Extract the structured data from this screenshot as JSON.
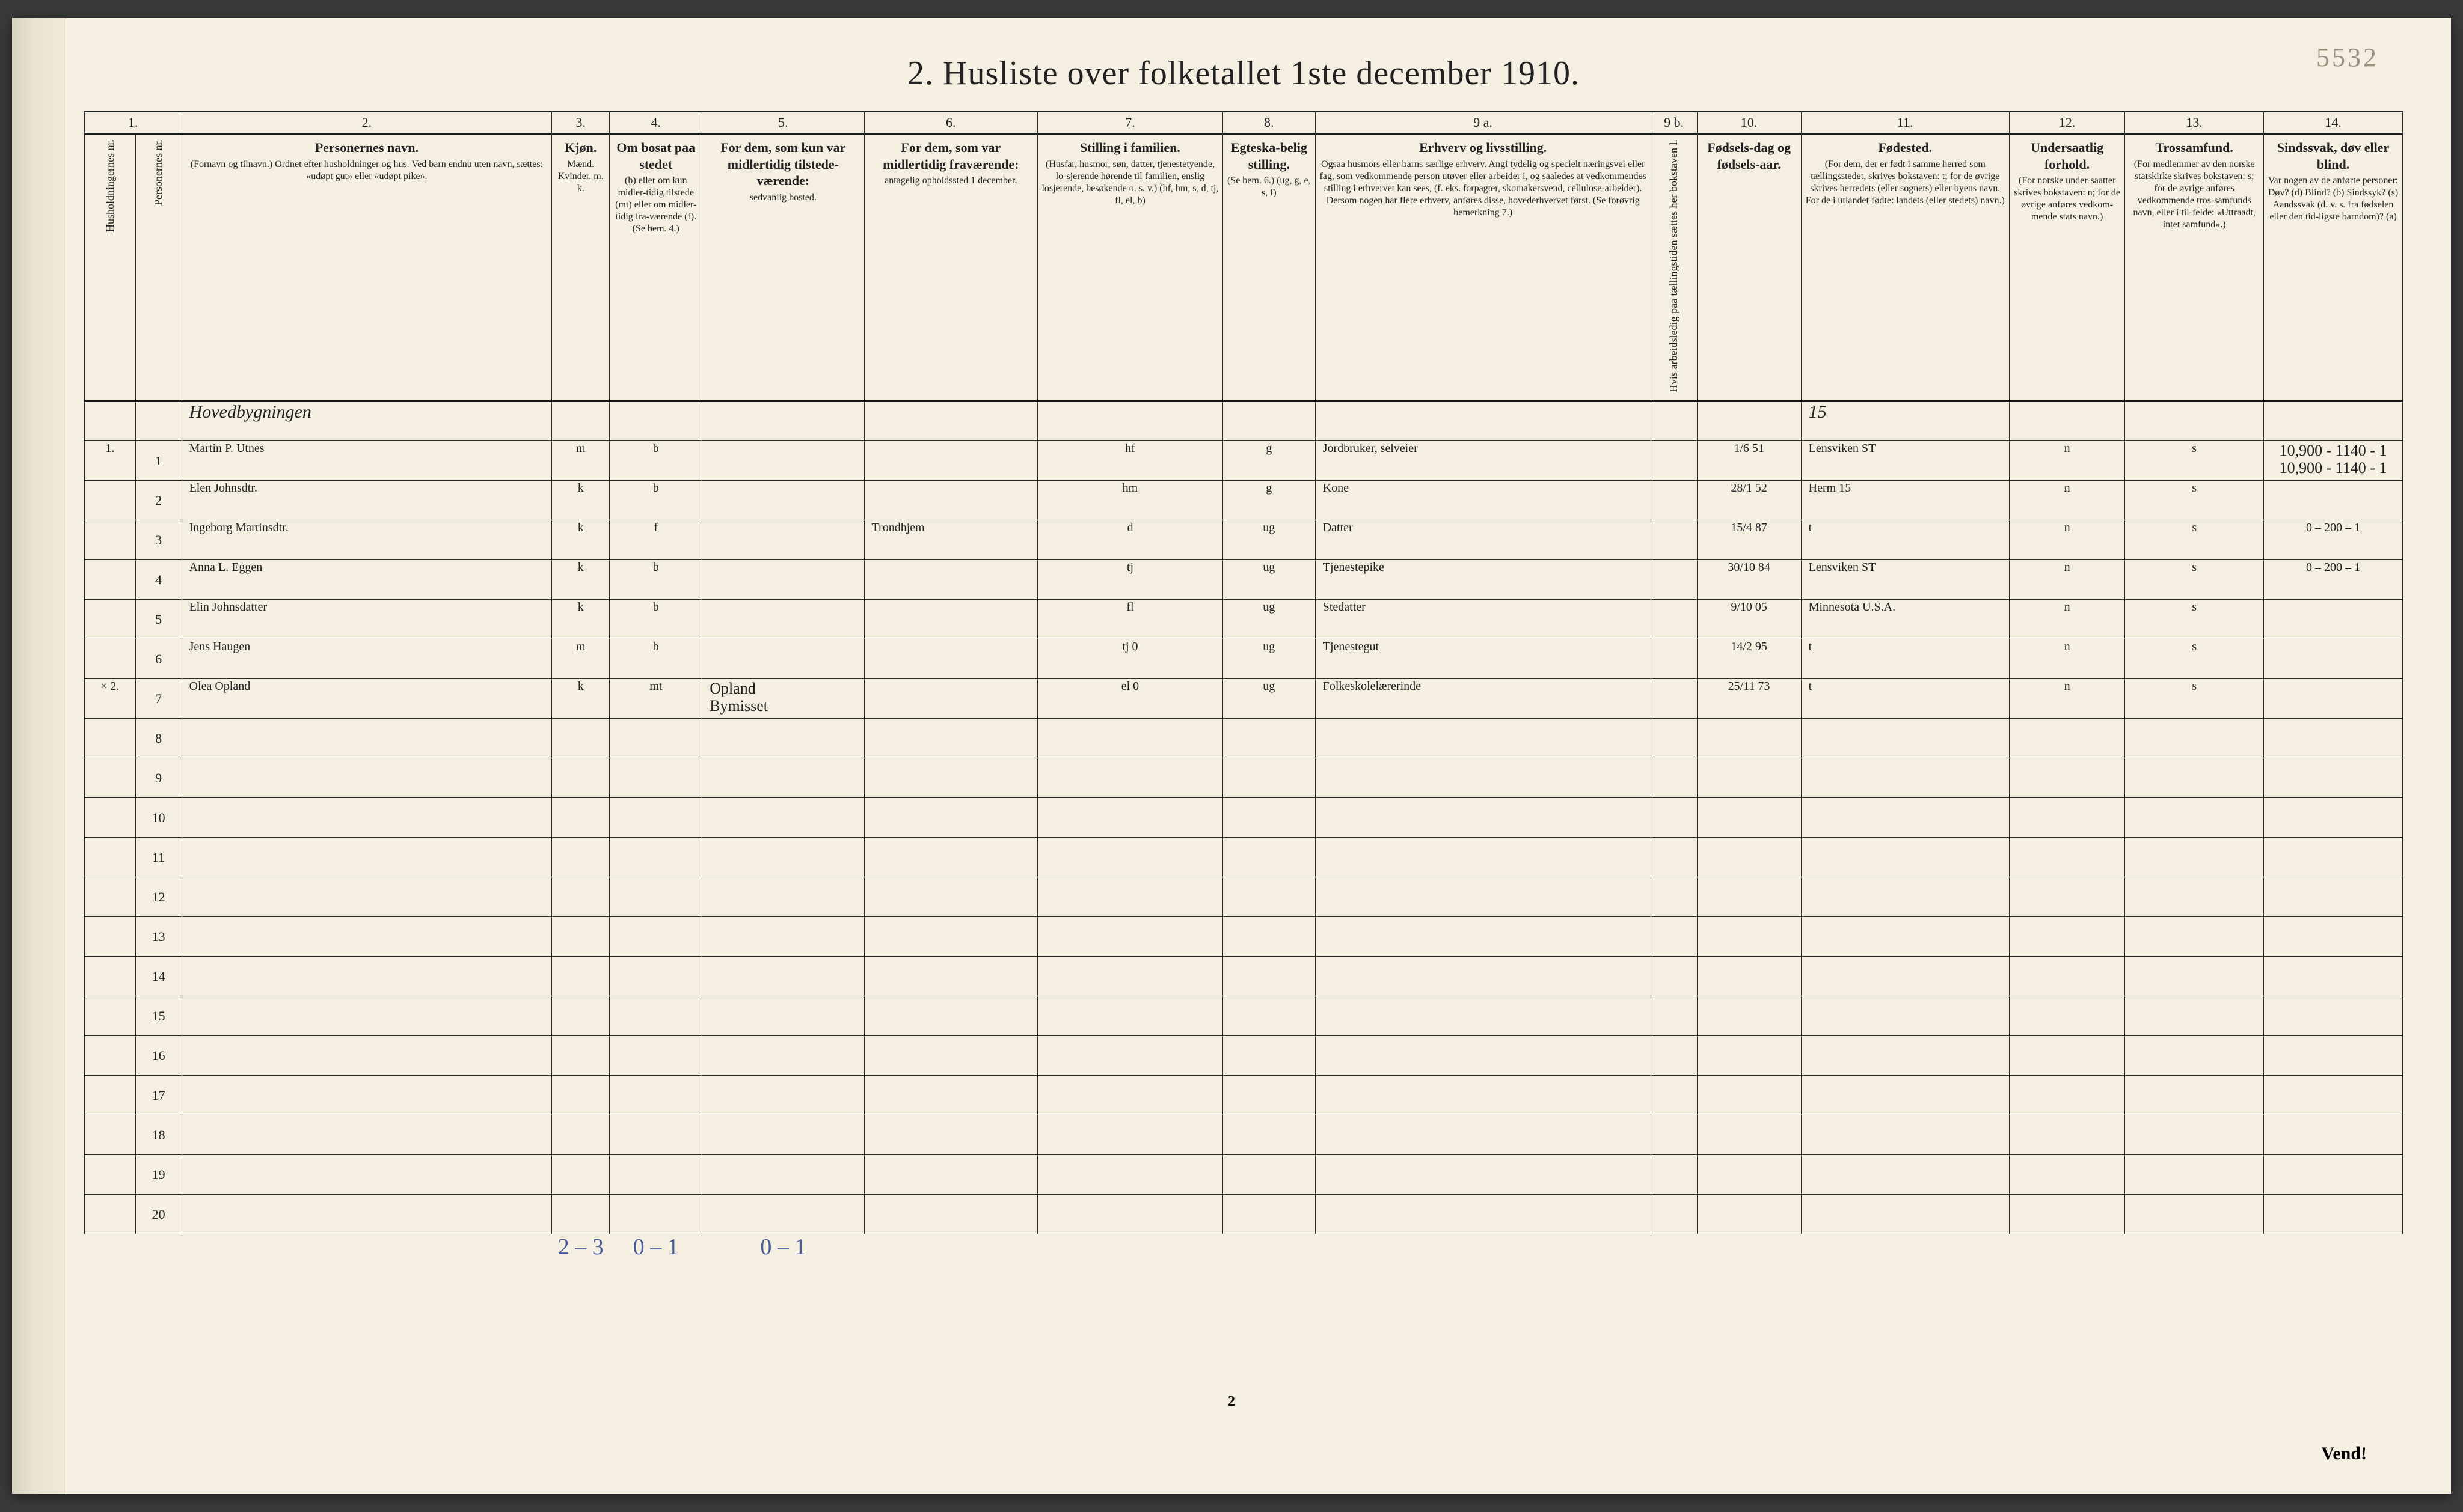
{
  "page": {
    "pencil_corner": "5532",
    "title": "2.  Husliste over folketallet 1ste december 1910.",
    "footer_page_num": "2",
    "vend": "Vend!"
  },
  "colnums": [
    "1.",
    "2.",
    "3.",
    "4.",
    "5.",
    "6.",
    "7.",
    "8.",
    "9 a.",
    "9 b.",
    "10.",
    "11.",
    "12.",
    "13.",
    "14."
  ],
  "headers": {
    "c1a": "Husholdningernes nr.",
    "c1b": "Personernes nr.",
    "c2_main": "Personernes navn.",
    "c2_sub": "(Fornavn og tilnavn.)\nOrdnet efter husholdninger og hus.\nVed barn endnu uten navn, sættes: «udøpt gut» eller «udøpt pike».",
    "c3_main": "Kjøn.",
    "c3_sub": "Mænd. Kvinder.\nm. k.",
    "c4_main": "Om bosat paa stedet",
    "c4_sub": "(b) eller om kun midler-tidig tilstede (mt) eller om midler-tidig fra-værende (f).\n(Se bem. 4.)",
    "c5_main": "For dem, som kun var midlertidig tilstede-værende:",
    "c5_sub": "sedvanlig bosted.",
    "c6_main": "For dem, som var midlertidig fraværende:",
    "c6_sub": "antagelig opholdssted 1 december.",
    "c7_main": "Stilling i familien.",
    "c7_sub": "(Husfar, husmor, søn, datter, tjenestetyende, lo-sjerende hørende til familien, enslig losjerende, besøkende o. s. v.)\n(hf, hm, s, d, tj, fl, el, b)",
    "c8_main": "Egteska-belig stilling.",
    "c8_sub": "(Se bem. 6.)\n(ug, g, e, s, f)",
    "c9a_main": "Erhverv og livsstilling.",
    "c9a_sub": "Ogsaa husmors eller barns særlige erhverv. Angi tydelig og specielt næringsvei eller fag, som vedkommende person utøver eller arbeider i, og saaledes at vedkommendes stilling i erhvervet kan sees, (f. eks. forpagter, skomakersvend, cellulose-arbeider). Dersom nogen har flere erhverv, anføres disse, hovederhvervet først.\n(Se forøvrig bemerkning 7.)",
    "c9b": "Hvis arbeidsledig paa tællingstiden sættes her bokstaven l.",
    "c10_main": "Fødsels-dag og fødsels-aar.",
    "c11_main": "Fødested.",
    "c11_sub": "(For dem, der er født i samme herred som tællingsstedet, skrives bokstaven: t; for de øvrige skrives herredets (eller sognets) eller byens navn. For de i utlandet fødte: landets (eller stedets) navn.)",
    "c12_main": "Undersaatlig forhold.",
    "c12_sub": "(For norske under-saatter skrives bokstaven: n; for de øvrige anføres vedkom-mende stats navn.)",
    "c13_main": "Trossamfund.",
    "c13_sub": "(For medlemmer av den norske statskirke skrives bokstaven: s; for de øvrige anføres vedkommende tros-samfunds navn, eller i til-felde: «Uttraadt, intet samfund».)",
    "c14_main": "Sindssvak, døv eller blind.",
    "c14_sub": "Var nogen av de anførte personer:\nDøv?     (d)\nBlind?   (b)\nSindssyk? (s)\nAandssvak (d. v. s. fra fødselen eller den tid-ligste barndom)? (a)"
  },
  "rows": [
    {
      "hh": "",
      "pn": "",
      "name": "Hovedbygningen",
      "sex": "",
      "res": "",
      "pres": "",
      "abs": "",
      "fam": "",
      "mar": "",
      "occ": "",
      "l": "",
      "bd": "",
      "bp": "15",
      "nat": "",
      "rel": "",
      "c14": ""
    },
    {
      "hh": "1.",
      "pn": "1",
      "name": "Martin P. Utnes",
      "sex": "m",
      "res": "b",
      "pres": "",
      "abs": "",
      "fam": "hf",
      "mar": "g",
      "occ": "Jordbruker, selveier",
      "l": "",
      "bd": "1/6 51",
      "bp": "Lensviken ST",
      "nat": "n",
      "rel": "s",
      "c14": "10,900 - 1140 - 1\n10,900 - 1140 - 1"
    },
    {
      "hh": "",
      "pn": "2",
      "name": "Elen Johnsdtr.",
      "sex": "k",
      "res": "b",
      "pres": "",
      "abs": "",
      "fam": "hm",
      "mar": "g",
      "occ": "Kone",
      "l": "",
      "bd": "28/1 52",
      "bp": "Herm 15",
      "nat": "n",
      "rel": "s",
      "c14": ""
    },
    {
      "hh": "",
      "pn": "3",
      "name": "Ingeborg Martinsdtr.",
      "sex": "k",
      "res": "f",
      "pres": "",
      "abs": "Trondhjem",
      "fam": "d",
      "mar": "ug",
      "occ": "Datter",
      "l": "",
      "bd": "15/4 87",
      "bp": "t",
      "nat": "n",
      "rel": "s",
      "c14": "0 – 200 – 1",
      "blue": true
    },
    {
      "hh": "",
      "pn": "4",
      "name": "Anna L. Eggen",
      "sex": "k",
      "res": "b",
      "pres": "",
      "abs": "",
      "fam": "tj",
      "mar": "ug",
      "occ": "Tjenestepike",
      "l": "",
      "bd": "30/10 84",
      "bp": "Lensviken ST",
      "nat": "n",
      "rel": "s",
      "c14": "0 – 200 – 1"
    },
    {
      "hh": "",
      "pn": "5",
      "name": "Elin Johnsdatter",
      "sex": "k",
      "res": "b",
      "pres": "",
      "abs": "",
      "fam": "fl",
      "mar": "ug",
      "occ": "Stedatter",
      "l": "",
      "bd": "9/10 05",
      "bp": "Minnesota U.S.A.",
      "nat": "n",
      "rel": "s",
      "c14": ""
    },
    {
      "hh": "",
      "pn": "6",
      "name": "Jens Haugen",
      "sex": "m",
      "res": "b",
      "pres": "",
      "abs": "",
      "fam": "tj   0",
      "mar": "ug",
      "occ": "Tjenestegut",
      "l": "",
      "bd": "14/2 95",
      "bp": "t",
      "nat": "n",
      "rel": "s",
      "c14": ""
    },
    {
      "hh": "× 2.",
      "pn": "7",
      "name": "Olea Opland",
      "sex": "k",
      "res": "mt",
      "pres": "Opland\nBymisset",
      "abs": "",
      "fam": "el   0",
      "mar": "ug",
      "occ": "Folkeskolelærerinde",
      "l": "",
      "bd": "25/11 73",
      "bp": "t",
      "nat": "n",
      "rel": "s",
      "c14": ""
    }
  ],
  "empty_rows": [
    "8",
    "9",
    "10",
    "11",
    "12",
    "13",
    "14",
    "15",
    "16",
    "17",
    "18",
    "19",
    "20"
  ],
  "tally": {
    "sex": "2 – 3",
    "res": "0 – 1",
    "pres": "0 – 1"
  },
  "columns": {
    "widths_pct": [
      2.2,
      2.0,
      16.0,
      2.5,
      4.0,
      7.0,
      7.5,
      8.0,
      4.0,
      14.5,
      2.0,
      4.5,
      9.0,
      5.0,
      6.0,
      6.0
    ]
  },
  "style": {
    "bg_page": "#f4efe0",
    "bg_body": "#3a3a3a",
    "ink": "#2a2a2a",
    "rule": "#1a1a1a",
    "pencil": "#9a9280",
    "blue_pencil": "#4a5a9a",
    "blue_line": "#3a5fd8"
  }
}
